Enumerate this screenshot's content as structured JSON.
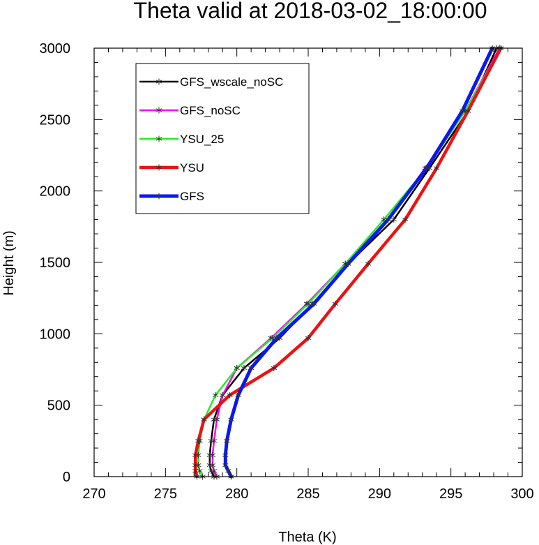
{
  "chart_data": {
    "type": "line",
    "title": "Theta valid at 2018-03-02_18:00:00",
    "xlabel": "Theta (K)",
    "ylabel": "Height (m)",
    "xlim": [
      270,
      300
    ],
    "ylim": [
      0,
      3000
    ],
    "xticks": [
      270,
      275,
      280,
      285,
      290,
      295,
      300
    ],
    "yticks": [
      0,
      500,
      1000,
      1500,
      2000,
      2500,
      3000
    ],
    "grid": false,
    "legend_position": "top-left",
    "series": [
      {
        "name": "GFS_wscale_noSC",
        "color": "#000000",
        "line_width": 2.5,
        "points": [
          [
            278.4,
            0
          ],
          [
            278.2,
            40
          ],
          [
            278.1,
            80
          ],
          [
            278.1,
            150
          ],
          [
            278.2,
            250
          ],
          [
            278.4,
            400
          ],
          [
            279.0,
            570
          ],
          [
            280.5,
            760
          ],
          [
            283.0,
            970
          ],
          [
            285.3,
            1210
          ],
          [
            287.8,
            1490
          ],
          [
            291.0,
            1800
          ],
          [
            293.5,
            2160
          ],
          [
            296.2,
            2560
          ],
          [
            298.2,
            3000
          ]
        ]
      },
      {
        "name": "GFS_noSC",
        "color": "#ff00ff",
        "line_width": 2.5,
        "points": [
          [
            278.6,
            0
          ],
          [
            278.4,
            40
          ],
          [
            278.3,
            80
          ],
          [
            278.3,
            150
          ],
          [
            278.4,
            250
          ],
          [
            278.6,
            400
          ],
          [
            279.0,
            570
          ],
          [
            280.0,
            760
          ],
          [
            282.4,
            970
          ],
          [
            284.9,
            1210
          ],
          [
            287.6,
            1490
          ],
          [
            290.6,
            1800
          ],
          [
            293.2,
            2160
          ],
          [
            296.0,
            2560
          ],
          [
            298.4,
            3000
          ]
        ]
      },
      {
        "name": "YSU_25",
        "color": "#22ee22",
        "line_width": 2.5,
        "points": [
          [
            277.6,
            0
          ],
          [
            277.4,
            40
          ],
          [
            277.3,
            80
          ],
          [
            277.3,
            150
          ],
          [
            277.4,
            250
          ],
          [
            277.7,
            400
          ],
          [
            278.5,
            570
          ],
          [
            280.0,
            760
          ],
          [
            282.5,
            970
          ],
          [
            285.0,
            1210
          ],
          [
            287.6,
            1490
          ],
          [
            290.3,
            1800
          ],
          [
            293.3,
            2160
          ],
          [
            296.0,
            2560
          ],
          [
            298.5,
            3000
          ]
        ]
      },
      {
        "name": "YSU",
        "color": "#ee1111",
        "line_width": 4.5,
        "points": [
          [
            277.2,
            0
          ],
          [
            277.1,
            40
          ],
          [
            277.1,
            80
          ],
          [
            277.1,
            150
          ],
          [
            277.3,
            250
          ],
          [
            277.7,
            400
          ],
          [
            279.5,
            570
          ],
          [
            282.6,
            760
          ],
          [
            285.0,
            970
          ],
          [
            286.9,
            1210
          ],
          [
            289.2,
            1490
          ],
          [
            291.8,
            1800
          ],
          [
            294.0,
            2160
          ],
          [
            296.2,
            2560
          ],
          [
            298.5,
            3000
          ]
        ]
      },
      {
        "name": "GFS",
        "color": "#0a18f0",
        "line_width": 5,
        "points": [
          [
            279.6,
            0
          ],
          [
            279.4,
            40
          ],
          [
            279.2,
            80
          ],
          [
            279.2,
            150
          ],
          [
            279.3,
            250
          ],
          [
            279.6,
            400
          ],
          [
            280.1,
            570
          ],
          [
            281.0,
            760
          ],
          [
            282.8,
            970
          ],
          [
            285.4,
            1210
          ],
          [
            287.8,
            1490
          ],
          [
            290.6,
            1800
          ],
          [
            293.3,
            2160
          ],
          [
            295.8,
            2560
          ],
          [
            297.9,
            3000
          ]
        ]
      }
    ]
  }
}
